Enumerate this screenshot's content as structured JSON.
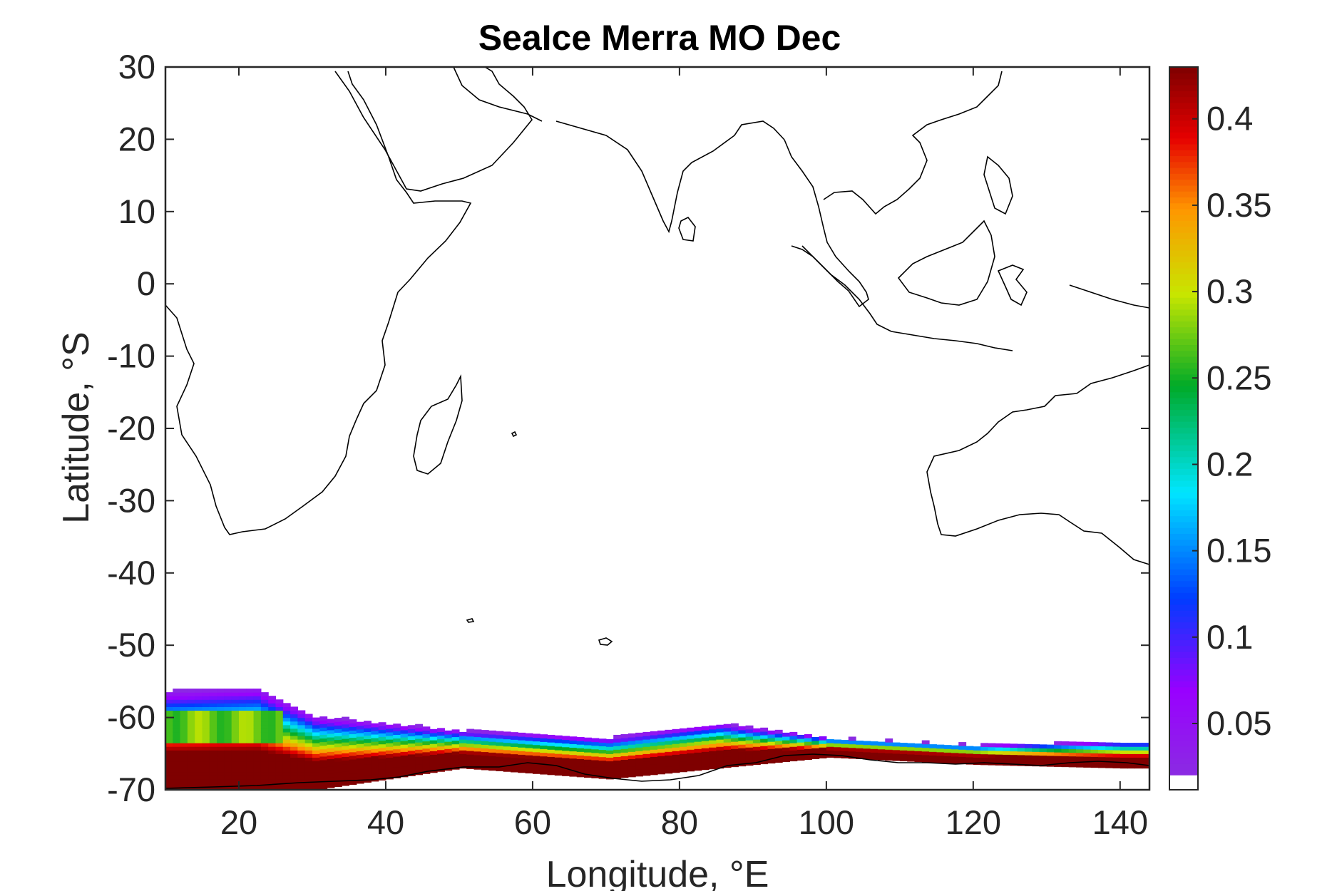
{
  "chart_data": {
    "type": "heatmap",
    "title": "SeaIce Merra MO Dec",
    "xlabel": "Longitude, °E",
    "ylabel": "Latitude, °S",
    "xlim": [
      10,
      144
    ],
    "ylim": [
      -70,
      30
    ],
    "x_ticks": [
      20,
      40,
      60,
      80,
      100,
      120,
      140
    ],
    "y_ticks": [
      30,
      20,
      10,
      0,
      -10,
      -20,
      -30,
      -40,
      -50,
      -60,
      -70
    ],
    "colorbar": {
      "colormap": "jet-like with magenta/purple low end, white below minimum",
      "range": [
        0.02,
        0.43
      ],
      "ticks": [
        "0.4",
        "0.35",
        "0.3",
        "0.25",
        "0.2",
        "0.15",
        "0.1",
        "0.05"
      ],
      "tick_values": [
        0.4,
        0.35,
        0.3,
        0.25,
        0.2,
        0.15,
        0.1,
        0.05
      ]
    },
    "grid": false,
    "legend": "none",
    "data_description_points": [
      {
        "lon": 10,
        "lat_edge": -56.5,
        "lat_bottom": -70
      },
      {
        "lon": 22,
        "lat_edge": -56,
        "lat_bottom": -70
      },
      {
        "lon": 30,
        "lat_edge": -60,
        "lat_bottom": -70
      },
      {
        "lon": 50,
        "lat_edge": -62,
        "lat_bottom": -67
      },
      {
        "lon": 70,
        "lat_edge": -63,
        "lat_bottom": -68.5
      },
      {
        "lon": 85,
        "lat_edge": -61,
        "lat_bottom": -67
      },
      {
        "lon": 100,
        "lat_edge": -63,
        "lat_bottom": -65.5
      },
      {
        "lon": 120,
        "lat_edge": -64,
        "lat_bottom": -66.5
      },
      {
        "lon": 140,
        "lat_edge": -63.5,
        "lat_bottom": -67
      }
    ]
  },
  "colors": {
    "low": "#8a2be2",
    "mid_low": "#1e5cff",
    "mid": "#00e0e0",
    "mid_high": "#9acd32",
    "high": "#ff8c00",
    "max": "#7f0000"
  }
}
